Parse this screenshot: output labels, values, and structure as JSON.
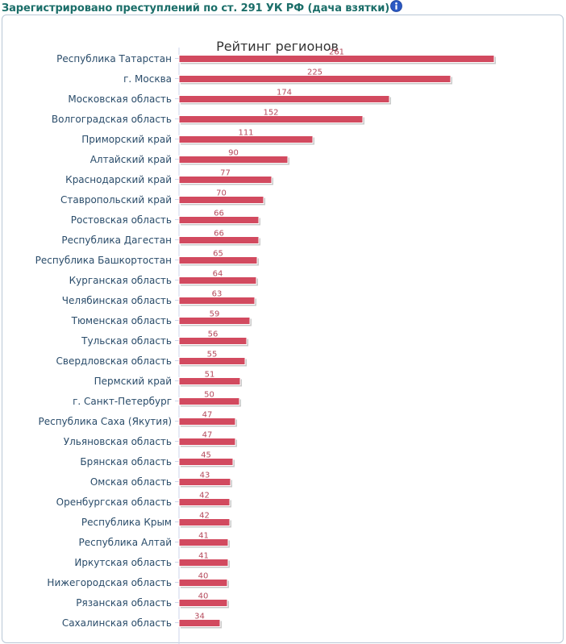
{
  "header": {
    "title": "Зарегистрировано преступлений по ст. 291 УК РФ (дача взятки)",
    "info_icon": "info-icon"
  },
  "colors": {
    "bar": "#d24a5f",
    "bar_shadow": "#c9c9c9",
    "value_label": "#b5495b",
    "category_label": "#2a4c6a",
    "header_text": "#1b6e69"
  },
  "chart_data": {
    "type": "bar",
    "orientation": "horizontal",
    "title": "Рейтинг регионов",
    "categories": [
      "Республика Татарстан",
      "г. Москва",
      "Московская область",
      "Волгоградская область",
      "Приморский край",
      "Алтайский край",
      "Краснодарский край",
      "Ставропольский край",
      "Ростовская область",
      "Республика Дагестан",
      "Республика Башкортостан",
      "Курганская область",
      "Челябинская область",
      "Тюменская область",
      "Тульская область",
      "Свердловская область",
      "Пермский край",
      "г. Санкт-Петербург",
      "Республика Саха (Якутия)",
      "Ульяновская область",
      "Брянская область",
      "Омская область",
      "Оренбургская область",
      "Республика Крым",
      "Республика Алтай",
      "Иркутская область",
      "Нижегородская область",
      "Рязанская область",
      "Сахалинская область"
    ],
    "values": [
      261,
      225,
      174,
      152,
      111,
      90,
      77,
      70,
      66,
      66,
      65,
      64,
      63,
      59,
      56,
      55,
      51,
      50,
      47,
      47,
      45,
      43,
      42,
      42,
      41,
      41,
      40,
      40,
      34
    ],
    "xlim": [
      0,
      261
    ],
    "grid": false,
    "legend": "none"
  }
}
